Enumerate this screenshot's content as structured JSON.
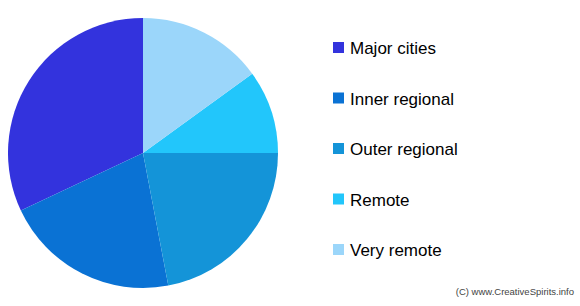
{
  "chart_data": {
    "type": "pie",
    "categories": [
      "Major cities",
      "Inner regional",
      "Outer regional",
      "Remote",
      "Very remote"
    ],
    "values": [
      32,
      21,
      22,
      10,
      15
    ],
    "colors": [
      "#3333dd",
      "#0a72d4",
      "#1494d8",
      "#22c6fb",
      "#9bd6fa"
    ],
    "legend": "right",
    "annotations": [
      "(C) www.CreativeSpirits.info"
    ]
  }
}
